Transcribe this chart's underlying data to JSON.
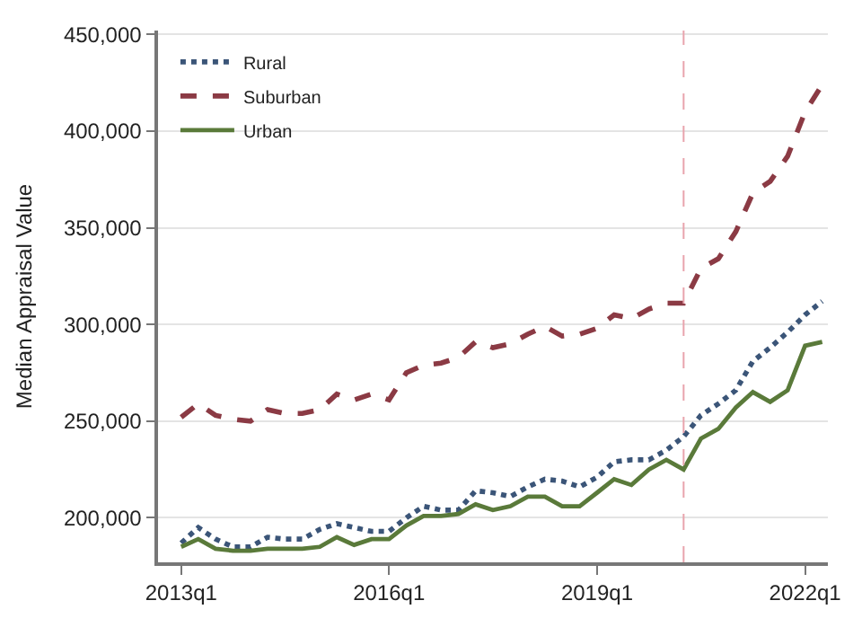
{
  "chart_data": {
    "type": "line",
    "ylabel": "Median Appraisal Value",
    "x": [
      "2013-01",
      "2013-04",
      "2013-07",
      "2013-10",
      "2014-01",
      "2014-04",
      "2014-07",
      "2014-10",
      "2015-01",
      "2015-04",
      "2015-07",
      "2015-10",
      "2016-01",
      "2016-04",
      "2016-07",
      "2016-10",
      "2017-01",
      "2017-04",
      "2017-07",
      "2017-10",
      "2018-01",
      "2018-04",
      "2018-07",
      "2018-10",
      "2019-01",
      "2019-04",
      "2019-07",
      "2019-10",
      "2020-01",
      "2020-04",
      "2020-07",
      "2020-10",
      "2021-01",
      "2021-04",
      "2021-07",
      "2021-10",
      "2022-01",
      "2022-04"
    ],
    "series": [
      {
        "name": "Rural",
        "color": "#3b5578",
        "line_style": "dotted",
        "values": [
          187000,
          195000,
          189000,
          185000,
          185000,
          190000,
          189000,
          189000,
          194000,
          197000,
          195000,
          193000,
          193000,
          200000,
          206000,
          204000,
          204000,
          214000,
          213000,
          211000,
          216000,
          220000,
          219000,
          216000,
          221000,
          229000,
          230000,
          230000,
          235000,
          242000,
          253000,
          259000,
          266000,
          281000,
          288000,
          296000,
          305000,
          312000
        ]
      },
      {
        "name": "Suburban",
        "color": "#8b3a44",
        "line_style": "dashed",
        "values": [
          252000,
          259000,
          253000,
          251000,
          250000,
          256000,
          254000,
          254000,
          256000,
          264000,
          261000,
          264000,
          261000,
          275000,
          279000,
          280000,
          283000,
          291000,
          288000,
          290000,
          295000,
          299000,
          294000,
          295000,
          298000,
          305000,
          303000,
          308000,
          311000,
          311000,
          329000,
          334000,
          348000,
          368000,
          374000,
          387000,
          410000,
          424000
        ]
      },
      {
        "name": "Urban",
        "color": "#5a7a3a",
        "line_style": "solid",
        "values": [
          185000,
          189000,
          184000,
          183000,
          183000,
          184000,
          184000,
          184000,
          185000,
          190000,
          186000,
          189000,
          189000,
          196000,
          201000,
          201000,
          202000,
          207000,
          204000,
          206000,
          211000,
          211000,
          206000,
          206000,
          213000,
          220000,
          217000,
          225000,
          230000,
          225000,
          241000,
          246000,
          257000,
          265000,
          260000,
          266000,
          289000,
          291000
        ]
      }
    ],
    "xlim": [
      "2012-09",
      "2022-05"
    ],
    "xticks": [
      {
        "value": "2013-01",
        "label": "2013q1"
      },
      {
        "value": "2016-01",
        "label": "2016q1"
      },
      {
        "value": "2019-01",
        "label": "2019q1"
      },
      {
        "value": "2022-01",
        "label": "2022q1"
      }
    ],
    "ylim": [
      177000,
      452000
    ],
    "yticks": [
      {
        "value": 200000,
        "label": "200,000"
      },
      {
        "value": 250000,
        "label": "250,000"
      },
      {
        "value": 300000,
        "label": "300,000"
      },
      {
        "value": 350000,
        "label": "350,000"
      },
      {
        "value": 400000,
        "label": "400,000"
      },
      {
        "value": 450000,
        "label": "450,000"
      }
    ],
    "ref_lines": [
      {
        "axis": "x",
        "value": "2020-04",
        "color": "#e8a4ad",
        "line_style": "dashed"
      }
    ],
    "grid": "y",
    "legend": "top left",
    "marker": "none"
  }
}
